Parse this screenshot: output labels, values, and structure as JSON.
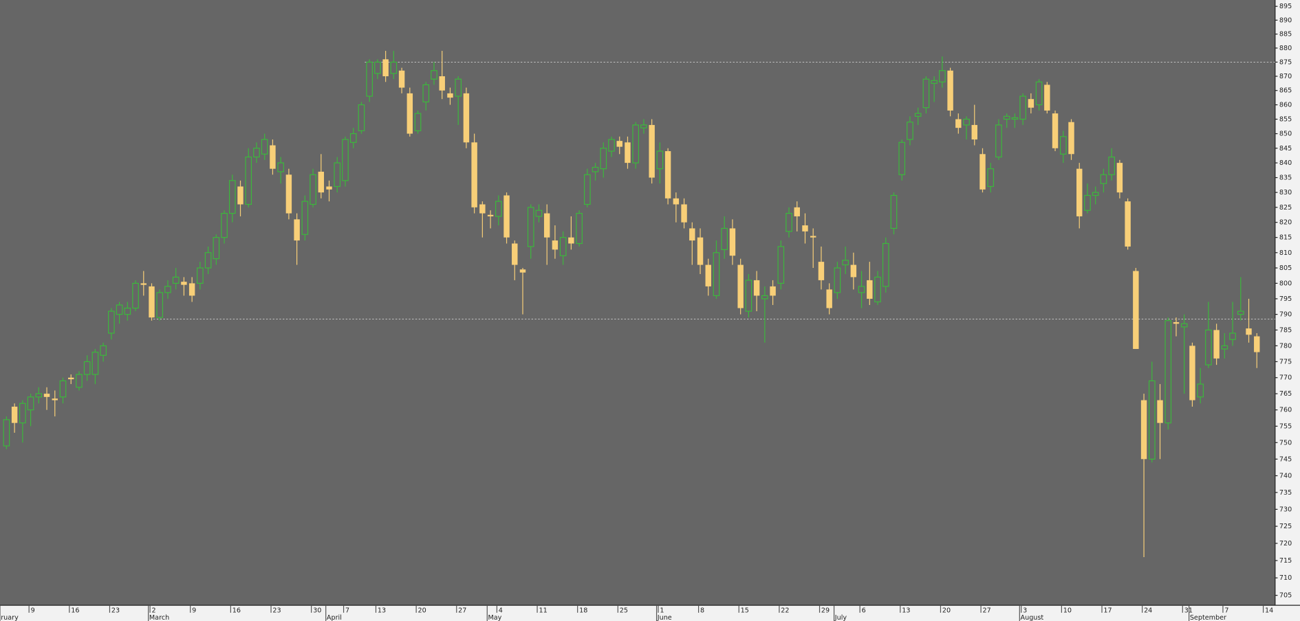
{
  "chart_data": {
    "type": "candlestick",
    "log_scale": true,
    "up_color": "#3cb83c",
    "down_color": "#f8cf78",
    "background": "#666666",
    "ylim": [
      702.4,
      897.3
    ],
    "yticks": [
      705,
      710,
      715,
      720,
      725,
      730,
      735,
      740,
      745,
      750,
      755,
      760,
      765,
      770,
      775,
      780,
      785,
      790,
      795,
      800,
      805,
      810,
      815,
      820,
      825,
      830,
      835,
      840,
      845,
      850,
      855,
      860,
      865,
      870,
      875,
      880,
      885,
      890,
      895
    ],
    "reference_lines": [
      875,
      788.5
    ],
    "categories": [
      null,
      null,
      null,
      "9",
      null,
      null,
      null,
      null,
      "16",
      null,
      null,
      null,
      null,
      "23",
      null,
      null,
      null,
      null,
      "2",
      null,
      null,
      null,
      null,
      "9",
      null,
      null,
      null,
      null,
      "16",
      null,
      null,
      null,
      null,
      "23",
      null,
      null,
      null,
      null,
      "30",
      null,
      null,
      null,
      "7",
      null,
      null,
      null,
      "13",
      null,
      null,
      null,
      null,
      "20",
      null,
      null,
      null,
      null,
      "27",
      null,
      null,
      null,
      null,
      "4",
      null,
      null,
      null,
      null,
      "11",
      null,
      null,
      null,
      null,
      "18",
      null,
      null,
      null,
      null,
      "25",
      null,
      null,
      null,
      null,
      "1",
      null,
      null,
      null,
      null,
      "8",
      null,
      null,
      null,
      null,
      "15",
      null,
      null,
      null,
      null,
      "22",
      null,
      null,
      null,
      null,
      "29",
      null,
      null,
      null,
      null,
      "6",
      null,
      null,
      null,
      null,
      "13",
      null,
      null,
      null,
      null,
      "20",
      null,
      null,
      null,
      null,
      "27",
      null,
      null,
      null,
      null,
      "3",
      null,
      null,
      null,
      null,
      "10",
      null,
      null,
      null,
      null,
      "17",
      null,
      null,
      null,
      null,
      "24",
      null,
      null,
      null,
      null,
      "31",
      null,
      null,
      null,
      null,
      "7",
      null,
      null,
      null,
      null,
      "14"
    ],
    "month_labels": [
      "ruary",
      null,
      null,
      null,
      null,
      null,
      null,
      null,
      null,
      null,
      null,
      null,
      null,
      null,
      null,
      null,
      null,
      null,
      "March",
      null,
      null,
      null,
      null,
      null,
      null,
      null,
      null,
      null,
      null,
      null,
      null,
      null,
      null,
      null,
      null,
      null,
      null,
      null,
      null,
      null,
      "April",
      null,
      null,
      null,
      null,
      null,
      null,
      null,
      null,
      null,
      null,
      null,
      null,
      null,
      null,
      null,
      null,
      null,
      null,
      null,
      "May",
      null,
      null,
      null,
      null,
      null,
      null,
      null,
      null,
      null,
      null,
      null,
      null,
      null,
      null,
      null,
      null,
      null,
      null,
      null,
      null,
      "June",
      null,
      null,
      null,
      null,
      null,
      null,
      null,
      null,
      null,
      null,
      null,
      null,
      null,
      null,
      null,
      null,
      null,
      null,
      null,
      null,
      null,
      "July",
      null,
      null,
      null,
      null,
      null,
      null,
      null,
      null,
      null,
      null,
      null,
      null,
      null,
      null,
      null,
      null,
      null,
      null,
      null,
      null,
      null,
      null,
      "August",
      null,
      null,
      null,
      null,
      null,
      null,
      null,
      null,
      null,
      null,
      null,
      null,
      null,
      null,
      null,
      null,
      null,
      null,
      null,
      null,
      "September",
      null,
      null,
      null,
      null,
      null,
      null,
      null,
      null,
      null
    ],
    "open": [
      749,
      761,
      756,
      760,
      764,
      765,
      763.5,
      764,
      770,
      767,
      771,
      771,
      777,
      784,
      790,
      790,
      792,
      800,
      799,
      789,
      797,
      800,
      800.5,
      800,
      800,
      805,
      808,
      815,
      823,
      832,
      826,
      842,
      843,
      846,
      837,
      836,
      821,
      816,
      826,
      837,
      832,
      832,
      834,
      847,
      851,
      863,
      871,
      876,
      871,
      872,
      864,
      851,
      861,
      869,
      870,
      864,
      863,
      864,
      847,
      826,
      822.5,
      822,
      829,
      813,
      804.5,
      812,
      822,
      823,
      814,
      809,
      815,
      813,
      826,
      837,
      838,
      844,
      847.5,
      847,
      840,
      852,
      853,
      838,
      844,
      828,
      826,
      818,
      815,
      806,
      796,
      811,
      818,
      806,
      791,
      801,
      795,
      799,
      800,
      817,
      825,
      819,
      815.5,
      807,
      798,
      797,
      806,
      806,
      797,
      801,
      794,
      799,
      818,
      836,
      848,
      856,
      859,
      867.5,
      868,
      872,
      855,
      853,
      853,
      843,
      832,
      842,
      855,
      855,
      855,
      862,
      860,
      867,
      857,
      843,
      854,
      838,
      824,
      829,
      833,
      836,
      840,
      827,
      804,
      763,
      745,
      763,
      756,
      787.5,
      786,
      780,
      764,
      774,
      785,
      779,
      782,
      790,
      785.5,
      783,
      null
    ],
    "high": [
      758,
      762,
      763,
      765,
      767,
      767,
      766,
      770,
      771,
      772,
      777,
      779,
      781,
      792,
      794,
      794,
      801,
      804,
      800,
      798,
      801,
      805,
      802,
      802,
      807,
      812,
      816,
      824,
      836,
      834,
      845,
      847,
      850,
      848,
      842,
      838,
      823,
      829,
      838,
      843,
      834,
      842,
      849,
      852,
      861,
      876,
      876,
      879,
      879,
      873,
      866,
      858,
      868,
      875,
      879,
      866,
      870,
      866,
      850,
      827,
      824,
      829,
      830,
      814,
      805,
      826,
      826,
      826,
      819,
      817,
      822,
      824,
      838,
      840,
      847,
      849,
      849,
      849,
      854,
      855,
      855,
      847,
      845,
      830,
      828,
      820,
      818,
      808,
      814,
      822,
      821,
      808,
      803,
      804,
      799,
      801,
      814,
      825,
      827,
      823,
      818,
      812,
      800,
      807,
      812,
      810,
      804,
      807,
      804,
      815,
      830,
      848,
      856,
      859,
      870,
      870,
      877,
      873,
      857,
      856,
      860,
      845,
      840,
      855,
      857,
      857,
      864,
      864,
      869,
      868,
      858,
      851,
      855,
      840,
      833,
      832,
      838,
      845,
      841,
      828,
      805,
      765,
      775,
      768,
      789,
      789,
      790,
      781,
      773,
      794,
      787,
      784,
      794,
      802,
      795,
      784,
      null
    ],
    "low": [
      748,
      753,
      750,
      755,
      762,
      760,
      758,
      762,
      768,
      766,
      769,
      768,
      775,
      782,
      787,
      788,
      791,
      796,
      788,
      788,
      795,
      798,
      796,
      794,
      798,
      803,
      806,
      813,
      820,
      822,
      825,
      840,
      841,
      836,
      833,
      821,
      806,
      814,
      825,
      828,
      827,
      830,
      832,
      845,
      850,
      861,
      869,
      868,
      869,
      864,
      849,
      850,
      858,
      867,
      862,
      860,
      853,
      845,
      823,
      815,
      818,
      819,
      813,
      801,
      790,
      808,
      820,
      806,
      808,
      806,
      811,
      812,
      825,
      834,
      835,
      842,
      843,
      838,
      838,
      850,
      833,
      833,
      826,
      820,
      818,
      806,
      803,
      796,
      795,
      808,
      806,
      790,
      789,
      791,
      781,
      793,
      798,
      815,
      817,
      813,
      805,
      798,
      790,
      795,
      803,
      798,
      792,
      793,
      793,
      797,
      816,
      834,
      846,
      853,
      857,
      861,
      866,
      856,
      850,
      848,
      846,
      830,
      830,
      841,
      852,
      852,
      853,
      857,
      858,
      857,
      844,
      840,
      841,
      818,
      823,
      826,
      830,
      834,
      828,
      811,
      779,
      716,
      744,
      745,
      754,
      783,
      765,
      761,
      762,
      773,
      774,
      776,
      780,
      788,
      781,
      773,
      null
    ],
    "close": [
      757,
      756,
      762,
      764,
      765,
      764,
      763,
      769,
      769.5,
      771,
      775,
      778,
      780,
      791,
      793,
      792,
      800,
      799.5,
      789,
      797,
      799,
      802,
      799.5,
      796,
      805,
      810,
      815,
      823,
      834,
      826,
      842,
      845,
      848,
      838,
      840,
      823,
      814,
      827,
      836,
      830,
      831,
      840,
      848,
      850,
      860,
      875,
      875,
      870,
      875,
      866,
      850,
      857,
      867,
      872,
      865,
      862.5,
      869,
      847,
      825,
      823,
      822,
      827,
      815,
      806,
      803.5,
      825,
      824,
      815,
      811,
      815,
      813,
      823,
      836,
      838.5,
      845,
      848,
      845.5,
      840,
      853,
      853,
      835,
      844,
      828,
      826,
      820,
      814,
      806,
      799,
      810,
      818,
      809,
      792,
      801,
      796,
      796,
      796,
      812,
      823,
      822,
      817,
      815,
      801,
      792,
      805,
      807.5,
      802,
      799,
      795,
      802,
      813,
      829,
      847,
      854,
      857,
      869,
      868.5,
      872,
      858,
      852,
      855,
      848,
      831,
      838,
      853,
      856,
      855.5,
      863,
      859,
      868,
      858,
      845,
      849,
      843,
      822,
      829,
      830,
      836,
      842,
      830,
      812,
      779,
      745,
      769,
      756,
      788,
      787,
      787,
      763,
      768,
      785,
      776,
      780,
      784,
      791,
      783.5,
      778,
      null
    ]
  }
}
